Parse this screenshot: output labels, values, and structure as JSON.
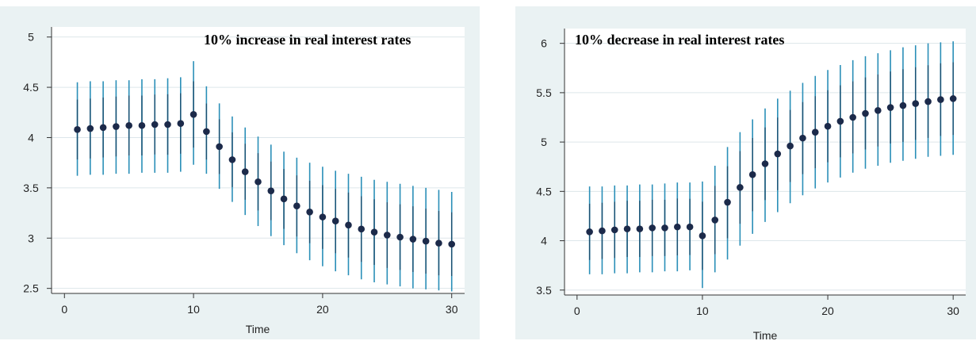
{
  "chart_data": [
    {
      "type": "scatter",
      "title": "10% increase in real interest rates",
      "xlabel": "Time",
      "ylabel": "",
      "xlim": [
        -1,
        31
      ],
      "ylim": [
        2.45,
        5.1
      ],
      "xticks": [
        0,
        10,
        20,
        30
      ],
      "yticks": [
        2.5,
        3,
        3.5,
        4,
        4.5,
        5
      ],
      "ytick_labels": [
        "2.5",
        "3",
        "3.5",
        "4",
        "4.5",
        "5"
      ],
      "grid": true,
      "series": [
        {
          "x": [
            1,
            2,
            3,
            4,
            5,
            6,
            7,
            8,
            9,
            10,
            11,
            12,
            13,
            14,
            15,
            16,
            17,
            18,
            19,
            20,
            21,
            22,
            23,
            24,
            25,
            26,
            27,
            28,
            29,
            30
          ],
          "values": [
            4.08,
            4.09,
            4.1,
            4.11,
            4.12,
            4.12,
            4.13,
            4.13,
            4.14,
            4.23,
            4.06,
            3.91,
            3.78,
            3.66,
            3.56,
            3.47,
            3.39,
            3.32,
            3.26,
            3.21,
            3.17,
            3.13,
            3.09,
            3.06,
            3.03,
            3.01,
            2.99,
            2.97,
            2.95,
            2.94
          ],
          "lower": [
            3.62,
            3.63,
            3.63,
            3.64,
            3.64,
            3.65,
            3.65,
            3.65,
            3.66,
            3.73,
            3.64,
            3.49,
            3.36,
            3.23,
            3.12,
            3.02,
            2.93,
            2.85,
            2.78,
            2.72,
            2.67,
            2.63,
            2.59,
            2.56,
            2.54,
            2.52,
            2.5,
            2.49,
            2.48,
            2.47
          ],
          "upper": [
            4.55,
            4.56,
            4.56,
            4.57,
            4.57,
            4.58,
            4.58,
            4.59,
            4.6,
            4.76,
            4.51,
            4.34,
            4.21,
            4.1,
            4.01,
            3.93,
            3.86,
            3.8,
            3.75,
            3.71,
            3.67,
            3.64,
            3.61,
            3.58,
            3.56,
            3.54,
            3.52,
            3.5,
            3.48,
            3.46
          ]
        }
      ]
    },
    {
      "type": "scatter",
      "title": "10% decrease in real interest rates",
      "xlabel": "Time",
      "ylabel": "",
      "xlim": [
        -1,
        31
      ],
      "ylim": [
        3.45,
        6.15
      ],
      "xticks": [
        0,
        10,
        20,
        30
      ],
      "yticks": [
        3.5,
        4,
        4.5,
        5,
        5.5,
        6
      ],
      "ytick_labels": [
        "3.5",
        "4",
        "4.5",
        "5",
        "5.5",
        "6"
      ],
      "grid": true,
      "series": [
        {
          "x": [
            1,
            2,
            3,
            4,
            5,
            6,
            7,
            8,
            9,
            10,
            11,
            12,
            13,
            14,
            15,
            16,
            17,
            18,
            19,
            20,
            21,
            22,
            23,
            24,
            25,
            26,
            27,
            28,
            29,
            30
          ],
          "values": [
            4.09,
            4.1,
            4.11,
            4.12,
            4.12,
            4.13,
            4.13,
            4.14,
            4.14,
            4.05,
            4.21,
            4.39,
            4.54,
            4.67,
            4.78,
            4.88,
            4.96,
            5.04,
            5.1,
            5.16,
            5.21,
            5.25,
            5.29,
            5.32,
            5.35,
            5.37,
            5.39,
            5.41,
            5.43,
            5.44
          ],
          "lower": [
            3.66,
            3.66,
            3.67,
            3.67,
            3.68,
            3.68,
            3.69,
            3.69,
            3.7,
            3.52,
            3.68,
            3.81,
            3.95,
            4.07,
            4.19,
            4.29,
            4.38,
            4.46,
            4.53,
            4.59,
            4.64,
            4.69,
            4.73,
            4.76,
            4.79,
            4.81,
            4.83,
            4.85,
            4.86,
            4.87
          ],
          "upper": [
            4.55,
            4.55,
            4.56,
            4.56,
            4.57,
            4.57,
            4.58,
            4.59,
            4.59,
            4.6,
            4.76,
            4.95,
            5.1,
            5.23,
            5.34,
            5.44,
            5.52,
            5.6,
            5.67,
            5.73,
            5.78,
            5.83,
            5.87,
            5.9,
            5.93,
            5.96,
            5.98,
            6.0,
            6.01,
            6.02
          ]
        }
      ]
    }
  ],
  "style": {
    "marker_color": "#1c2a4a",
    "ci_color": "#2a8fb8",
    "ci_inner_color": "#1a4f70",
    "grid_color": "#dde6ea",
    "panel_bg": "#eaf2f3",
    "plot_bg": "#ffffff"
  }
}
